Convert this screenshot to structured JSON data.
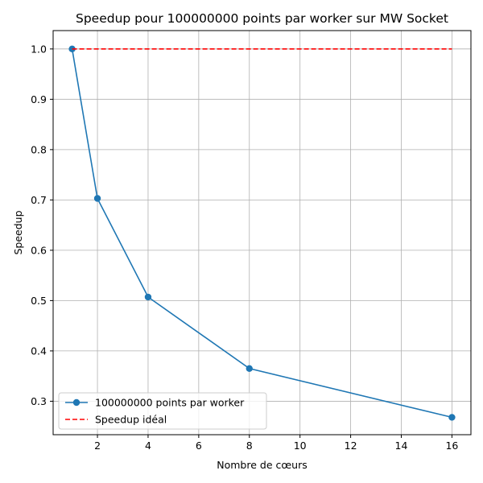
{
  "chart_data": {
    "type": "line",
    "title": "Speedup pour 100000000 points par worker sur MW Socket",
    "xlabel": "Nombre de cœurs",
    "ylabel": "Speedup",
    "xlim": [
      0.25,
      16.75
    ],
    "ylim": [
      0.2335,
      1.0365
    ],
    "xticks": [
      2,
      4,
      6,
      8,
      10,
      12,
      14,
      16
    ],
    "yticks": [
      0.3,
      0.4,
      0.5,
      0.6,
      0.7,
      0.8,
      0.9,
      1.0
    ],
    "grid": true,
    "legend_position": "lower-left",
    "series": [
      {
        "name": "100000000 points par worker",
        "x": [
          1,
          2,
          4,
          8,
          16
        ],
        "y": [
          1.0,
          0.703,
          0.507,
          0.365,
          0.268
        ],
        "color": "#1f77b4",
        "style": "solid",
        "marker": "circle"
      },
      {
        "name": "Speedup idéal",
        "x": [
          1,
          16
        ],
        "y": [
          1.0,
          1.0
        ],
        "color": "#ff0000",
        "style": "dashed",
        "marker": "none"
      }
    ]
  }
}
